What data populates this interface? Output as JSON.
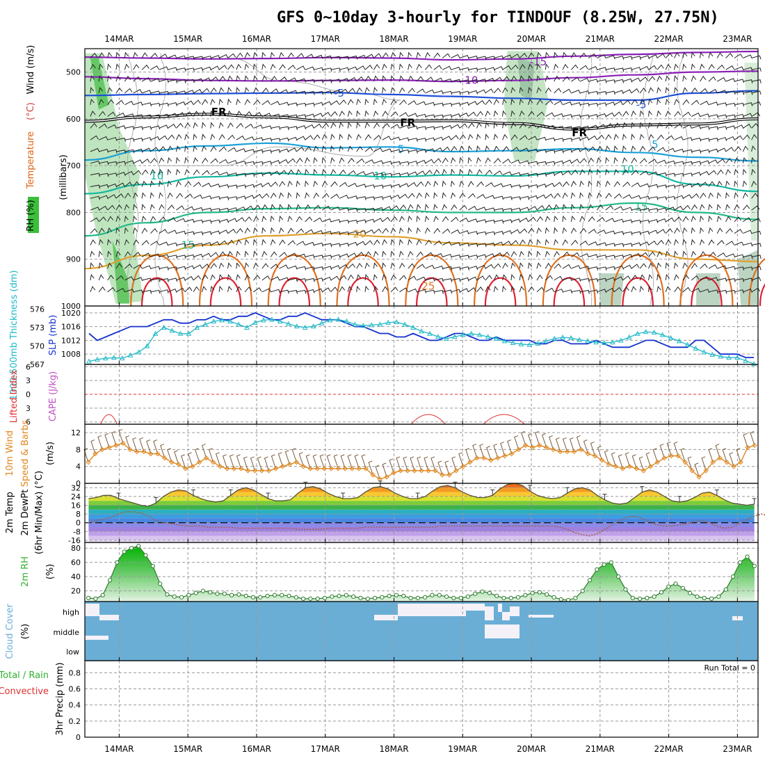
{
  "title": "GFS 0~10day 3-hourly for TINDOUF (8.25W, 27.75N)",
  "colors": {
    "temp_contours": [
      "#8a1fb8",
      "#1f4fd8",
      "#1aa0d8",
      "#11b8a0",
      "#22b888",
      "#e0a030",
      "#e07020",
      "#e02030"
    ],
    "rh": "#3cbf3c",
    "slp": "#1530d0",
    "thickness": "#20b8c8",
    "lifted": "#e03030",
    "wind": "#e08820",
    "cloud": "#6aaed6",
    "rh2m": "#30b030"
  },
  "chart_data": [
    {
      "name": "upper-air",
      "type": "contour",
      "xlabel": "",
      "xtick_labels": [
        "14MAR",
        "15MAR",
        "16MAR",
        "17MAR",
        "18MAR",
        "19MAR",
        "20MAR",
        "21MAR",
        "22MAR",
        "23MAR"
      ],
      "y_axis_label_parts": [
        "RH (%)",
        "Temperature",
        "(°C)",
        "Wind (m/s)"
      ],
      "y_unit_label": "(millibars)",
      "y_ticks": [
        500,
        600,
        700,
        800,
        900,
        1000
      ],
      "ylim": [
        1000,
        450
      ],
      "contour_labels": [
        {
          "text": "-15",
          "day": 6.1,
          "p": 478
        },
        {
          "text": "-10",
          "day": 5.1,
          "p": 518
        },
        {
          "text": "-5",
          "day": 3.2,
          "p": 545
        },
        {
          "text": "-5",
          "day": 7.6,
          "p": 570
        },
        {
          "text": "FR",
          "day": 1.45,
          "p": 585
        },
        {
          "text": "FR",
          "day": 4.2,
          "p": 608
        },
        {
          "text": "FR",
          "day": 6.7,
          "p": 630
        },
        {
          "text": "5",
          "day": 4.1,
          "p": 665
        },
        {
          "text": "5",
          "day": 7.8,
          "p": 655
        },
        {
          "text": "10",
          "day": 0.55,
          "p": 722
        },
        {
          "text": "10",
          "day": 3.8,
          "p": 722
        },
        {
          "text": "10",
          "day": 7.4,
          "p": 708
        },
        {
          "text": "15",
          "day": 1.0,
          "p": 870
        },
        {
          "text": "15",
          "day": 7.6,
          "p": 788
        },
        {
          "text": "20",
          "day": 3.5,
          "p": 846
        },
        {
          "text": "25",
          "day": 4.5,
          "p": 958
        }
      ],
      "isotherms": [
        {
          "t": -15,
          "p": [
            468,
            470,
            472,
            471,
            469,
            470,
            474,
            472,
            466,
            462,
            458,
            456
          ]
        },
        {
          "t": -10,
          "p": [
            510,
            514,
            518,
            519,
            518,
            517,
            520,
            518,
            512,
            506,
            500,
            498
          ]
        },
        {
          "t": -5,
          "p": [
            550,
            548,
            546,
            545,
            544,
            548,
            552,
            556,
            560,
            560,
            545,
            540
          ]
        },
        {
          "t": 0,
          "p": [
            605,
            596,
            590,
            596,
            605,
            605,
            604,
            610,
            622,
            613,
            611,
            600
          ]
        },
        {
          "t": 5,
          "p": [
            688,
            668,
            658,
            652,
            662,
            660,
            670,
            668,
            664,
            672,
            682,
            690
          ]
        },
        {
          "t": 10,
          "p": [
            760,
            740,
            724,
            716,
            720,
            724,
            720,
            722,
            712,
            712,
            740,
            755
          ]
        },
        {
          "t": 15,
          "p": [
            850,
            822,
            800,
            792,
            790,
            795,
            800,
            800,
            790,
            780,
            800,
            815
          ]
        },
        {
          "t": 20,
          "p": [
            920,
            892,
            870,
            850,
            845,
            852,
            865,
            870,
            880,
            880,
            900,
            905
          ]
        }
      ],
      "rh_shading_days": [
        0.05,
        0.3,
        6.65,
        6.9
      ]
    },
    {
      "name": "slp-thickness",
      "type": "line",
      "left_axis_label": "1000-500mb Thickness (dm)",
      "right_axis_label": "SLP (mb)",
      "thickness_ticks": [
        567,
        570,
        573,
        576
      ],
      "slp_ticks": [
        1008,
        1012,
        1016,
        1020
      ],
      "series": [
        {
          "name": "SLP",
          "unit": "mb",
          "values": [
            1014,
            1012,
            1013,
            1014,
            1015,
            1016,
            1016,
            1016,
            1017,
            1018,
            1018,
            1017,
            1017,
            1018,
            1018,
            1019,
            1018,
            1018,
            1019,
            1019,
            1020,
            1019,
            1018,
            1018,
            1019,
            1019,
            1020,
            1019,
            1018,
            1018,
            1018,
            1017,
            1016,
            1016,
            1015,
            1014,
            1014,
            1013,
            1013,
            1014,
            1013,
            1012,
            1012,
            1013,
            1014,
            1014,
            1013,
            1012,
            1012,
            1013,
            1012,
            1012,
            1012,
            1012,
            1011,
            1011,
            1012,
            1012,
            1011,
            1011,
            1011,
            1012,
            1011,
            1010,
            1010,
            1010,
            1011,
            1012,
            1012,
            1011,
            1010,
            1010,
            1010,
            1012,
            1012,
            1010,
            1008,
            1008,
            1008,
            1007,
            1007
          ]
        },
        {
          "name": "Thickness",
          "unit": "dm",
          "values": [
            567.5,
            567.8,
            568,
            568.1,
            568,
            568.5,
            569,
            570,
            572,
            573,
            572.5,
            572,
            572,
            573,
            573.5,
            574,
            574.2,
            574,
            573.5,
            573,
            573.8,
            574.2,
            574.3,
            574,
            573.6,
            573.2,
            573,
            573.2,
            573.7,
            574.2,
            574.3,
            574,
            573.5,
            573.3,
            573.4,
            573.5,
            573.8,
            573.9,
            573.5,
            573,
            572.4,
            572,
            571.5,
            571.2,
            571.5,
            571.8,
            572,
            571.8,
            571.5,
            571.2,
            570.8,
            570.5,
            570.3,
            570.2,
            570.4,
            570.8,
            571.2,
            571.4,
            571.3,
            571,
            570.8,
            570.6,
            570.5,
            570.6,
            570.9,
            571.4,
            572,
            572.3,
            572.2,
            571.8,
            571.3,
            570.8,
            570.2,
            569.6,
            569,
            568.6,
            568.3,
            568.1,
            568.1,
            567.6,
            567.1
          ]
        }
      ]
    },
    {
      "name": "stability",
      "type": "line",
      "left_axis_label": "Lifted Index",
      "right_axis_label": "CAPE (J/kg)",
      "li_ticks": [
        -6,
        -3,
        0,
        3,
        6
      ],
      "series": [
        {
          "name": "Lifted Index",
          "values": [
            6.3,
            6.3,
            6.3,
            6.0,
            5.9,
            6.1,
            6.3,
            6.3,
            6.3,
            6.3,
            6.3,
            6.3,
            6.3,
            6.3,
            6.3,
            6.3,
            6.3,
            6.3,
            6.3,
            6.3,
            6.3,
            6.3,
            6.3,
            6.3,
            6.3,
            6.3,
            6.3,
            6.3,
            6.3,
            6.3,
            6.3,
            6.3,
            6.3,
            6.3,
            6.3,
            6.3,
            6.3,
            6.3,
            6.3,
            6.3,
            6.3,
            6.3,
            6.3,
            6.3,
            6.3,
            6.3,
            6.3,
            6.3,
            6.3,
            6.3,
            6.3,
            6.3,
            6.3,
            6.3,
            6.3,
            6.3,
            6.3,
            6.3,
            6.3,
            6.3,
            6.3,
            6.3,
            6.3,
            6.3,
            6.3,
            6.3,
            6.3,
            6.3,
            6.3,
            6.3,
            6.3,
            6.3,
            6.3,
            6.3,
            6.3,
            6.3,
            6.3,
            6.3,
            6.3,
            6.3,
            6.3
          ]
        }
      ]
    },
    {
      "name": "wind10m",
      "type": "line",
      "left_axis_label": "10m Wind",
      "y_axis_label": "Speed & Barbs",
      "y_unit": "(m/s)",
      "y_ticks": [
        0,
        4,
        8,
        12
      ],
      "series": [
        {
          "name": "Speed",
          "values": [
            5,
            7,
            8,
            8.5,
            9,
            9.5,
            8,
            7.5,
            7.5,
            7,
            7,
            6,
            5,
            4.5,
            3.5,
            4,
            5,
            6,
            5,
            4,
            3.5,
            3.5,
            3.5,
            3,
            3,
            3,
            3,
            3.5,
            4,
            4.5,
            5,
            4,
            3.5,
            3.5,
            3.5,
            3.5,
            3.5,
            3.5,
            3.5,
            3.5,
            3.5,
            2,
            1,
            1.5,
            2.5,
            3,
            3,
            3,
            3,
            3,
            3,
            2,
            2,
            3,
            4,
            5,
            6,
            6,
            5.5,
            6,
            6.5,
            7,
            8,
            9,
            8.5,
            9,
            8.5,
            8,
            7.5,
            7.5,
            7.5,
            8,
            7,
            6.5,
            5.5,
            4.5,
            4,
            3.5,
            4,
            3.5,
            3,
            4,
            5,
            6,
            6.5,
            6.5,
            5,
            3,
            1.5,
            3,
            5,
            6,
            5,
            4,
            5,
            8.5,
            9
          ]
        }
      ]
    },
    {
      "name": "temp2m",
      "type": "area",
      "left_axis_label": "2m Temp",
      "y_axis_label": "2m DewPt",
      "y_unit": "(6hr Min/Max) (°C)",
      "y_ticks": [
        -16,
        -8,
        0,
        8,
        16,
        24,
        32
      ],
      "series": [
        {
          "name": "Temp",
          "values": [
            22,
            23,
            25,
            25,
            22,
            20,
            18,
            16,
            15,
            18,
            24,
            28,
            30,
            29,
            25,
            22,
            20,
            19,
            20,
            25,
            30,
            32,
            30,
            26,
            22,
            20,
            20,
            21,
            27,
            32,
            33,
            31,
            27,
            24,
            22,
            22,
            23,
            28,
            32,
            33,
            31,
            27,
            24,
            22,
            22,
            24,
            29,
            33,
            34,
            32,
            28,
            25,
            23,
            23,
            25,
            31,
            35,
            36,
            34,
            29,
            25,
            23,
            22,
            23,
            27,
            31,
            32,
            30,
            25,
            21,
            18,
            17,
            18,
            23,
            28,
            30,
            28,
            24,
            20,
            19,
            20,
            23,
            27,
            28,
            25,
            21,
            18,
            17,
            16,
            17
          ]
        },
        {
          "name": "DewPt",
          "values": [
            0,
            2,
            3,
            5,
            8,
            10,
            10,
            9,
            6,
            2,
            0,
            -1,
            -2,
            -3,
            -3,
            -3,
            -4,
            -4,
            -4,
            -4,
            -5,
            -5,
            -5,
            -5,
            -5,
            -5,
            -5,
            -5,
            -6,
            -6,
            -6,
            -6,
            -5,
            -5,
            -5,
            -5,
            -5,
            -4,
            -4,
            -4,
            -4,
            -4,
            -4,
            -4,
            -4,
            -4,
            -4,
            -3,
            -3,
            -3,
            -3,
            -3,
            -3,
            -3,
            -3,
            -3,
            -3,
            -3,
            -3,
            -3,
            -3,
            -3,
            -3,
            -4,
            -6,
            -9,
            -11,
            -12,
            -10,
            -6,
            -2,
            2,
            5,
            6,
            4,
            1,
            -2,
            -3,
            -3,
            -2,
            -1,
            1,
            2,
            0,
            -3,
            -5,
            -4,
            -1,
            3,
            6,
            8,
            6
          ]
        }
      ]
    },
    {
      "name": "rh2m",
      "type": "area",
      "left_axis_label": "2m RH",
      "y_unit": "(%)",
      "y_ticks": [
        20,
        40,
        60,
        80
      ],
      "series": [
        {
          "name": "RH",
          "values": [
            10,
            9,
            14,
            35,
            60,
            75,
            80,
            83,
            70,
            55,
            30,
            15,
            12,
            11,
            14,
            17,
            20,
            18,
            16,
            16,
            14,
            15,
            13,
            11,
            11,
            13,
            14,
            14,
            13,
            11,
            9,
            9,
            9,
            10,
            12,
            13,
            14,
            12,
            10,
            9,
            10,
            11,
            13,
            14,
            13,
            10,
            10,
            11,
            14,
            14,
            12,
            10,
            10,
            12,
            16,
            19,
            17,
            13,
            10,
            10,
            11,
            14,
            17,
            18,
            15,
            11,
            8,
            7,
            10,
            20,
            35,
            50,
            57,
            60,
            40,
            22,
            10,
            9,
            10,
            12,
            18,
            26,
            30,
            24,
            17,
            12,
            10,
            9,
            12,
            22,
            40,
            60,
            68,
            55
          ]
        }
      ]
    },
    {
      "name": "cloud",
      "type": "bar",
      "left_axis_label": "Cloud Cover",
      "y_unit": "(%)",
      "categories": [
        "high",
        "middle",
        "low"
      ]
    },
    {
      "name": "precip",
      "type": "bar",
      "left_axis_label": "Total / Rain",
      "left_axis_label2": "Convective",
      "y_axis_label": "3hr Precip (mm)",
      "y_ticks": [
        0,
        0.2,
        0.4,
        0.6,
        0.8
      ],
      "run_total": "Run Total = 0",
      "values": []
    }
  ]
}
